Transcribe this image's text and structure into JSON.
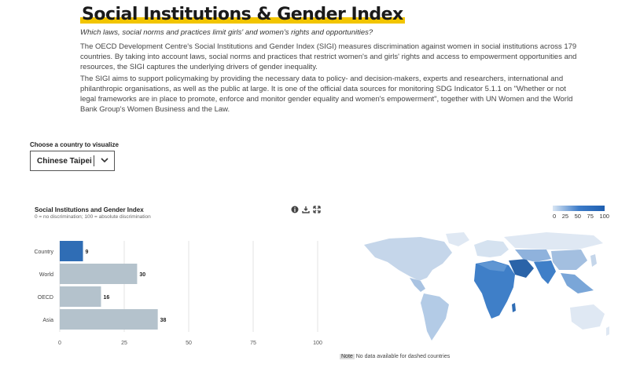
{
  "header": {
    "title": "Social Institutions & Gender Index",
    "subtitle": "Which laws, social norms and practices limit girls' and women's rights and opportunities?",
    "paragraph1": "The OECD Development Centre's Social Institutions and Gender Index (SIGI) measures discrimination against women in social institutions across 179 countries. By taking into account laws, social norms and practices that restrict women's and girls' rights and access to empowerment opportunities and resources, the SIGI captures the underlying drivers of gender inequality.",
    "paragraph2": "The SIGI aims to support policymaking by providing the necessary data to policy- and decision-makers, experts and researchers, international and philanthropic organisations, as well as the public at large. It is one of the official data sources for monitoring SDG Indicator 5.1.1 on \"Whether or not legal frameworks are in place to promote, enforce and monitor gender equality and women's empowerment\", together with UN Women and the World Bank Group's Women Business and the Law."
  },
  "selector": {
    "label": "Choose a country to visualize",
    "value": "Chinese Taipei",
    "chevron_icon": "chevron-down-icon"
  },
  "chart_panel": {
    "title": "Social Institutions and Gender Index",
    "subtitle": "0 = no discrimination; 100 = absolute discrimination",
    "tools": [
      "info-icon",
      "download-icon",
      "expand-icon"
    ]
  },
  "chart_data": {
    "type": "bar",
    "orientation": "horizontal",
    "title": "Social Institutions and Gender Index",
    "categories": [
      "Country",
      "World",
      "OECD",
      "Asia"
    ],
    "values": [
      9,
      30,
      16,
      38
    ],
    "value_labels": [
      "9",
      "30",
      "16",
      "38"
    ],
    "xticks": [
      "0",
      "25",
      "50",
      "75",
      "100"
    ],
    "xlim": [
      0,
      100
    ],
    "grid": true,
    "colors": [
      "#2f6db5",
      "#b4c2cc",
      "#b4c2cc",
      "#b4c2cc"
    ]
  },
  "legend": {
    "labels": [
      "0",
      "25",
      "50",
      "75",
      "100"
    ]
  },
  "map": {
    "note_tag": "Note",
    "note_text": "No data available for dashed countries"
  }
}
